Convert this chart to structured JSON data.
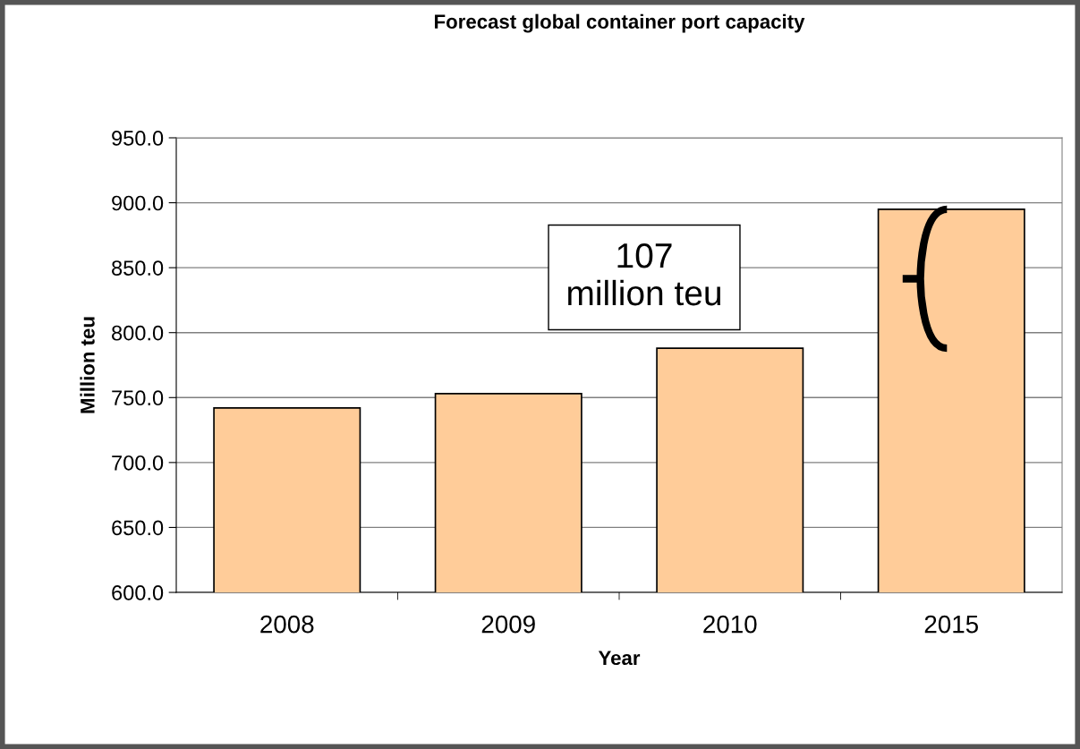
{
  "chart_data": {
    "type": "bar",
    "title": "Forecast global container port capacity",
    "xlabel": "Year",
    "ylabel": "Million teu",
    "categories": [
      "2008",
      "2009",
      "2010",
      "2015"
    ],
    "values": [
      742,
      753,
      788,
      895
    ],
    "color": "#ffcc99",
    "ylim": [
      600,
      950
    ],
    "yticks": [
      {
        "value": 600,
        "label": "600.0"
      },
      {
        "value": 650,
        "label": "650.0"
      },
      {
        "value": 700,
        "label": "700.0"
      },
      {
        "value": 750,
        "label": "750.0"
      },
      {
        "value": 800,
        "label": "800.0"
      },
      {
        "value": 850,
        "label": "850.0"
      },
      {
        "value": 900,
        "label": "900.0"
      },
      {
        "value": 950,
        "label": "950.0"
      }
    ],
    "grid": "y",
    "annotations": [
      "107\nmillion teu"
    ]
  }
}
